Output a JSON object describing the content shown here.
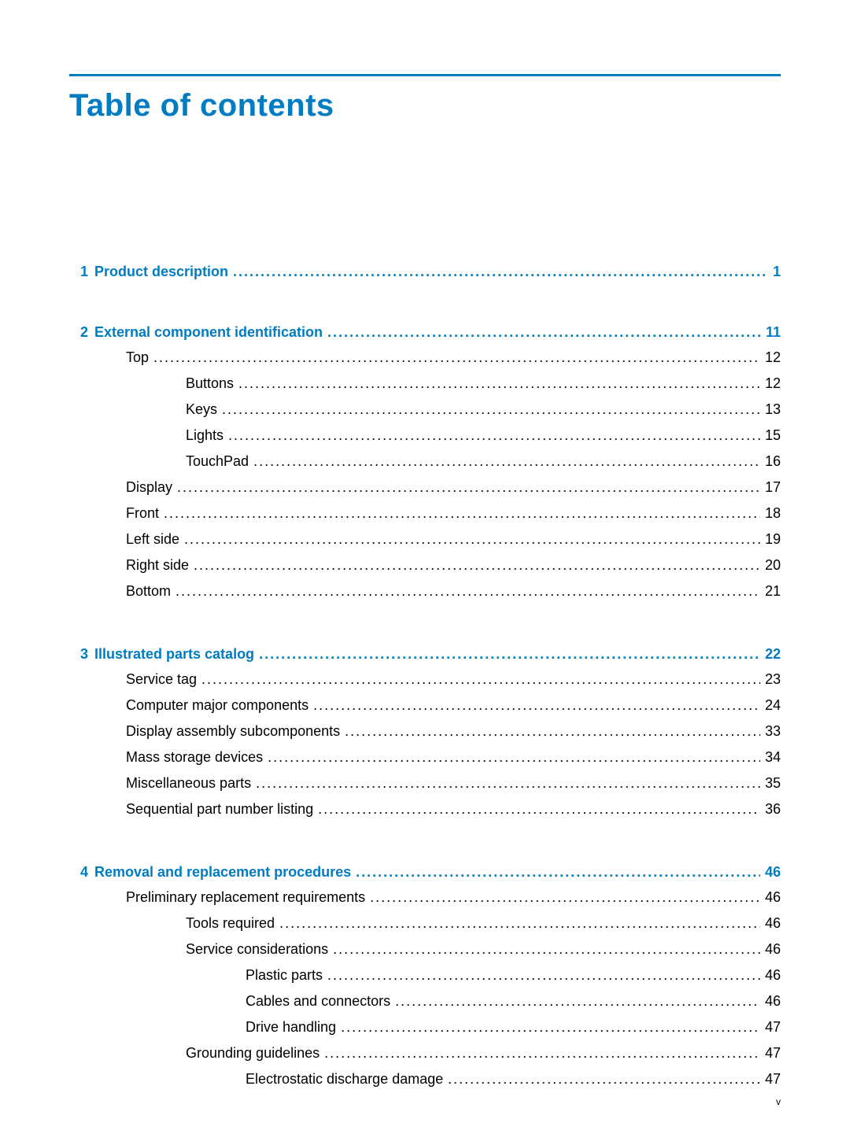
{
  "title": "Table of contents",
  "divider_color": "#007cc3",
  "title_color": "#007cc3",
  "page_footer": "v",
  "sections": [
    {
      "number": "1",
      "label": "Product description",
      "page": "1",
      "items": []
    },
    {
      "number": "2",
      "label": "External component identification",
      "page": "11",
      "items": [
        {
          "level": 1,
          "label": "Top",
          "page": "12"
        },
        {
          "level": 2,
          "label": "Buttons",
          "page": "12"
        },
        {
          "level": 2,
          "label": "Keys",
          "page": "13"
        },
        {
          "level": 2,
          "label": "Lights",
          "page": "15"
        },
        {
          "level": 2,
          "label": "TouchPad",
          "page": "16"
        },
        {
          "level": 1,
          "label": "Display",
          "page": "17"
        },
        {
          "level": 1,
          "label": "Front",
          "page": "18"
        },
        {
          "level": 1,
          "label": "Left side",
          "page": "19"
        },
        {
          "level": 1,
          "label": "Right side",
          "page": "20"
        },
        {
          "level": 1,
          "label": "Bottom",
          "page": "21"
        }
      ]
    },
    {
      "number": "3",
      "label": "Illustrated parts catalog",
      "page": "22",
      "items": [
        {
          "level": 1,
          "label": "Service tag",
          "page": "23"
        },
        {
          "level": 1,
          "label": "Computer major components",
          "page": "24"
        },
        {
          "level": 1,
          "label": "Display assembly subcomponents",
          "page": "33"
        },
        {
          "level": 1,
          "label": "Mass storage devices",
          "page": "34"
        },
        {
          "level": 1,
          "label": "Miscellaneous parts",
          "page": "35"
        },
        {
          "level": 1,
          "label": "Sequential part number listing",
          "page": "36"
        }
      ]
    },
    {
      "number": "4",
      "label": "Removal and replacement procedures",
      "page": "46",
      "items": [
        {
          "level": 1,
          "label": "Preliminary replacement requirements",
          "page": "46"
        },
        {
          "level": 2,
          "label": "Tools required",
          "page": "46"
        },
        {
          "level": 2,
          "label": "Service considerations",
          "page": "46"
        },
        {
          "level": 3,
          "label": "Plastic parts",
          "page": "46"
        },
        {
          "level": 3,
          "label": "Cables and connectors",
          "page": "46"
        },
        {
          "level": 3,
          "label": "Drive handling",
          "page": "47"
        },
        {
          "level": 2,
          "label": "Grounding guidelines",
          "page": "47"
        },
        {
          "level": 3,
          "label": "Electrostatic discharge damage",
          "page": "47"
        }
      ]
    }
  ]
}
